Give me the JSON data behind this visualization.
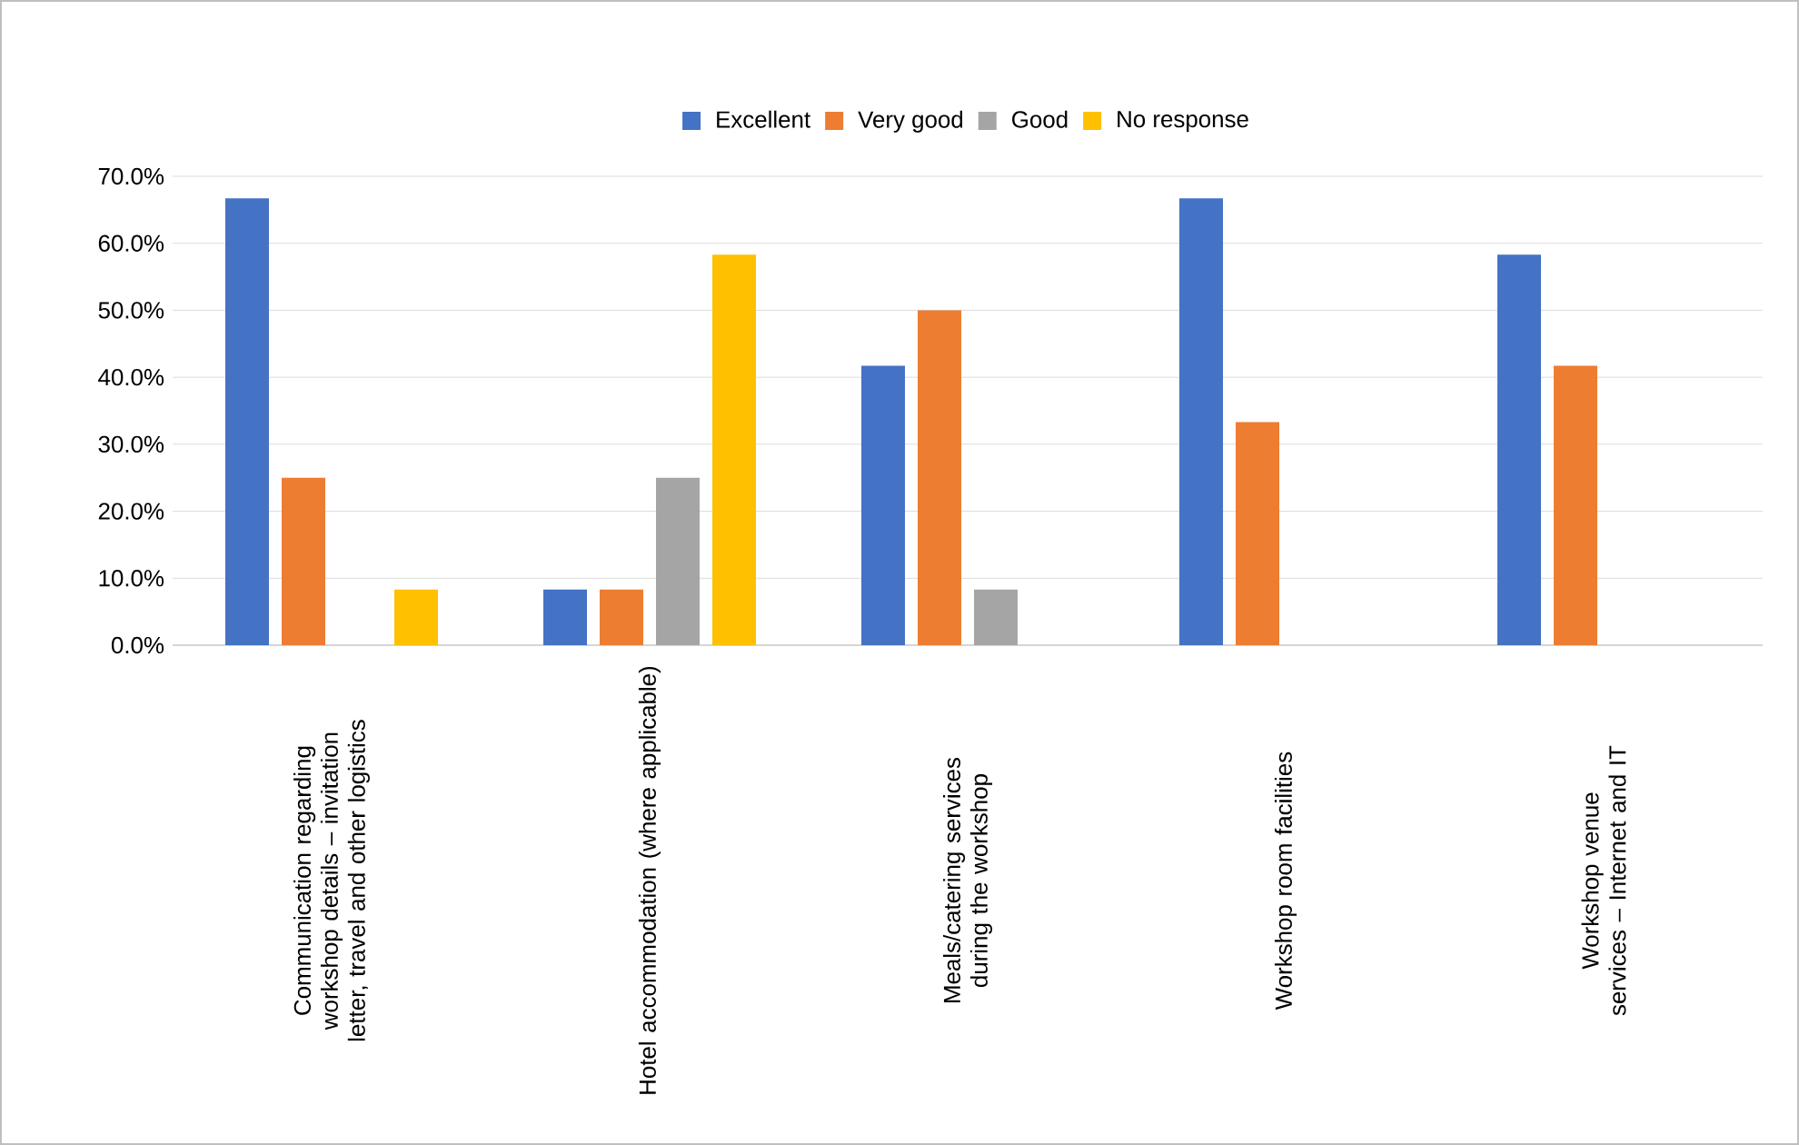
{
  "chart_data": {
    "type": "bar",
    "categories": [
      "Communication regarding workshop details – invitation letter, travel and other logistics",
      "Hotel accommodation (where applicable)",
      "Meals/catering services during the workshop",
      "Workshop room facilities",
      "Workshop venue services – Internet and IT"
    ],
    "series": [
      {
        "name": "Excellent",
        "color": "#4472c4",
        "values": [
          66.7,
          8.3,
          41.7,
          66.7,
          58.3
        ]
      },
      {
        "name": "Very good",
        "color": "#ed7d31",
        "values": [
          25.0,
          8.3,
          50.0,
          33.3,
          41.7
        ]
      },
      {
        "name": "Good",
        "color": "#a5a5a5",
        "values": [
          0,
          25.0,
          8.3,
          0,
          0
        ]
      },
      {
        "name": "No response",
        "color": "#ffc000",
        "values": [
          8.3,
          58.3,
          0,
          0,
          0
        ]
      }
    ],
    "ylim": [
      0,
      70
    ],
    "yticks": [
      {
        "value": 0,
        "label": "0.0%"
      },
      {
        "value": 10,
        "label": "10.0%"
      },
      {
        "value": 20,
        "label": "20.0%"
      },
      {
        "value": 30,
        "label": "30.0%"
      },
      {
        "value": 40,
        "label": "40.0%"
      },
      {
        "value": 50,
        "label": "50.0%"
      },
      {
        "value": 60,
        "label": "60.0%"
      },
      {
        "value": 70,
        "label": "70.0%"
      }
    ],
    "grid": "y",
    "legend": "top"
  }
}
